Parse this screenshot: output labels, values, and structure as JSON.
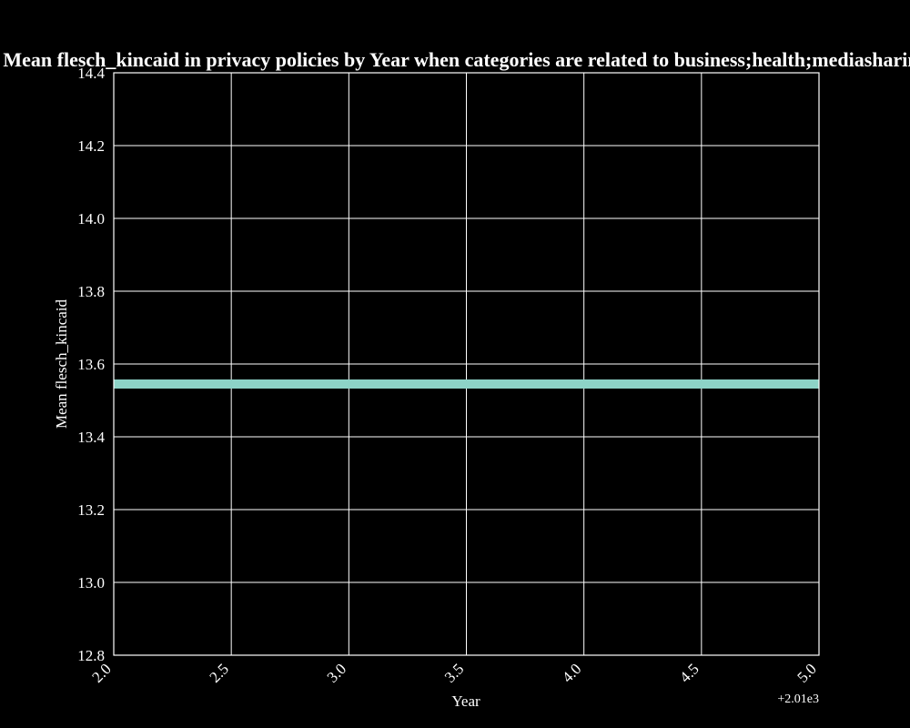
{
  "chart_data": {
    "type": "line",
    "title": "Mean flesch_kincaid in privacy policies by Year when categories are related to business;health;mediasharing",
    "xlabel": "Year",
    "ylabel": "Mean flesch_kincaid",
    "x_offset_label": "+2.01e3",
    "xlim": [
      2012.0,
      2015.0
    ],
    "ylim": [
      12.8,
      14.4
    ],
    "xticks": [
      2.0,
      2.5,
      3.0,
      3.5,
      4.0,
      4.5,
      5.0
    ],
    "xtick_labels": [
      "2.0",
      "2.5",
      "3.0",
      "3.5",
      "4.0",
      "4.5",
      "5.0"
    ],
    "yticks": [
      12.8,
      13.0,
      13.2,
      13.4,
      13.6,
      13.8,
      14.0,
      14.2,
      14.4
    ],
    "ytick_labels": [
      "12.8",
      "13.0",
      "13.2",
      "13.4",
      "13.6",
      "13.8",
      "14.0",
      "14.2",
      "14.4"
    ],
    "grid": true,
    "series": [
      {
        "color": "#8dd3c7",
        "x": [
          2012.0,
          2015.0
        ],
        "y": [
          13.545,
          13.545
        ]
      }
    ],
    "colors": {
      "background": "#000000",
      "foreground": "#ffffff"
    }
  }
}
